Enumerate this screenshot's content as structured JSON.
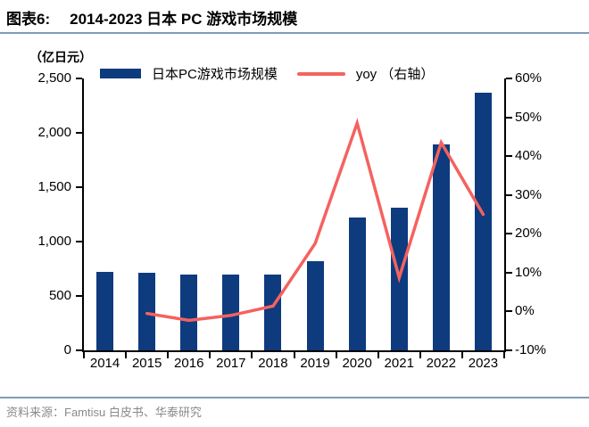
{
  "header": {
    "prefix": "图表6:",
    "title": "2014-2023 日本 PC 游戏市场规模"
  },
  "chart_data": {
    "type": "bar",
    "title": "2014-2023 日本 PC 游戏市场规模",
    "unit_label": "（亿日元）",
    "categories": [
      "2014",
      "2015",
      "2016",
      "2017",
      "2018",
      "2019",
      "2020",
      "2021",
      "2022",
      "2023"
    ],
    "series": [
      {
        "name": "日本PC游戏市场规模",
        "type": "bar",
        "axis": "left",
        "values": [
          720,
          715,
          700,
          700,
          700,
          820,
          1225,
          1315,
          1895,
          2370
        ]
      },
      {
        "name": "yoy （右轴）",
        "type": "line",
        "axis": "right",
        "values": [
          null,
          -0.5,
          -2.3,
          -1,
          1.4,
          17.5,
          48.5,
          8.7,
          43.5,
          25
        ]
      }
    ],
    "left_axis": {
      "min": 0,
      "max": 2500,
      "step": 500,
      "tick_labels": [
        "0",
        "500",
        "1,000",
        "1,500",
        "2,000",
        "2,500"
      ]
    },
    "right_axis": {
      "min": -10,
      "max": 60,
      "step": 10,
      "tick_labels": [
        "-10%",
        "0%",
        "10%",
        "20%",
        "30%",
        "40%",
        "50%",
        "60%"
      ]
    },
    "legend": [
      {
        "label": "日本PC游戏市场规模",
        "type": "bar"
      },
      {
        "label": "yoy （右轴）",
        "type": "line"
      }
    ],
    "legend_position": "top",
    "grid": false
  },
  "footer": {
    "source": "资料来源：Famtisu 白皮书、华泰研究"
  },
  "colors": {
    "bar": "#0D3B7E",
    "line": "#F4625F",
    "rule": "#7E9DBB",
    "axis": "#000000",
    "footer_text": "#8A8A8A"
  }
}
